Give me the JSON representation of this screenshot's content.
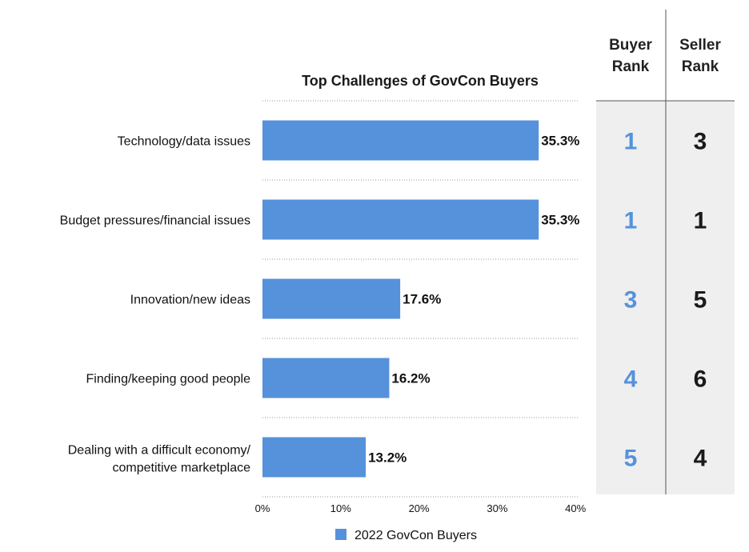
{
  "chart_data": {
    "type": "bar",
    "orientation": "horizontal",
    "title": "Top Challenges of GovCon Buyers",
    "categories": [
      "Technology/data issues",
      "Budget pressures/financial issues",
      "Innovation/new ideas",
      "Finding/keeping good people",
      "Dealing with a difficult economy/ competitive marketplace"
    ],
    "series": [
      {
        "name": "2022 GovCon Buyers",
        "values": [
          35.3,
          35.3,
          17.6,
          16.2,
          13.2
        ]
      }
    ],
    "value_labels": [
      "35.3%",
      "35.3%",
      "17.6%",
      "16.2%",
      "13.2%"
    ],
    "xlim": [
      0,
      40
    ],
    "x_ticks": [
      "0%",
      "10%",
      "20%",
      "30%",
      "40%"
    ],
    "bar_color": "#5592DB",
    "grid": "dotted horizontal separators",
    "legend_position": "bottom"
  },
  "rank_table": {
    "headers": [
      "Buyer Rank",
      "Seller Rank"
    ],
    "buyer_ranks": [
      "1",
      "1",
      "3",
      "4",
      "5"
    ],
    "seller_ranks": [
      "3",
      "1",
      "5",
      "6",
      "4"
    ],
    "buyer_color": "#5592DB",
    "seller_color": "#1a1a1a",
    "background": "#EFEFEF"
  }
}
